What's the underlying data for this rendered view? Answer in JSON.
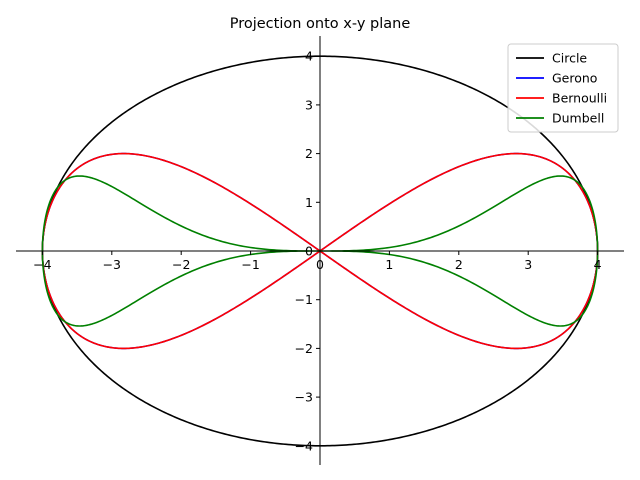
{
  "chart_data": {
    "type": "line",
    "title": "Projection onto x-y plane",
    "xlabel": "",
    "ylabel": "",
    "xlim": [
      -4.4,
      4.4
    ],
    "ylim": [
      -4.4,
      4.4
    ],
    "x_ticks": [
      -4,
      -3,
      -2,
      -1,
      0,
      1,
      2,
      3,
      4
    ],
    "y_ticks": [
      -4,
      -3,
      -2,
      -1,
      0,
      1,
      2,
      3,
      4
    ],
    "grid": false,
    "legend_position": "top-right",
    "series": [
      {
        "name": "Circle",
        "color": "#000000",
        "curve": "x = 4 cos t, y = 4 sin t"
      },
      {
        "name": "Gerono",
        "color": "#0000ff",
        "curve": "x = 4 cos t, y = 2 sin 2t"
      },
      {
        "name": "Bernoulli",
        "color": "#ff0000",
        "curve": "x = 4 cos t, y = 2 sin 2t"
      },
      {
        "name": "Dumbell",
        "color": "#008000",
        "curve": "x = 4 cos t, y = 2 sin^3 2t / ... (dumbbell)"
      }
    ],
    "key_points": {
      "Circle": {
        "x_extent": [
          -4,
          4
        ],
        "y_extent": [
          -4,
          4
        ]
      },
      "Gerono": {
        "x_extent": [
          -4,
          4
        ],
        "y_extent": [
          -2,
          2
        ],
        "y_max_at_x": 2.83
      },
      "Bernoulli": {
        "x_extent": [
          -4,
          4
        ],
        "y_extent": [
          -2,
          2
        ],
        "y_max_at_x": 2.83
      },
      "Dumbell": {
        "x_extent": [
          -4,
          4
        ],
        "y_extent": [
          -1.54,
          1.54
        ],
        "y_max_at_x": 3.27
      }
    }
  }
}
